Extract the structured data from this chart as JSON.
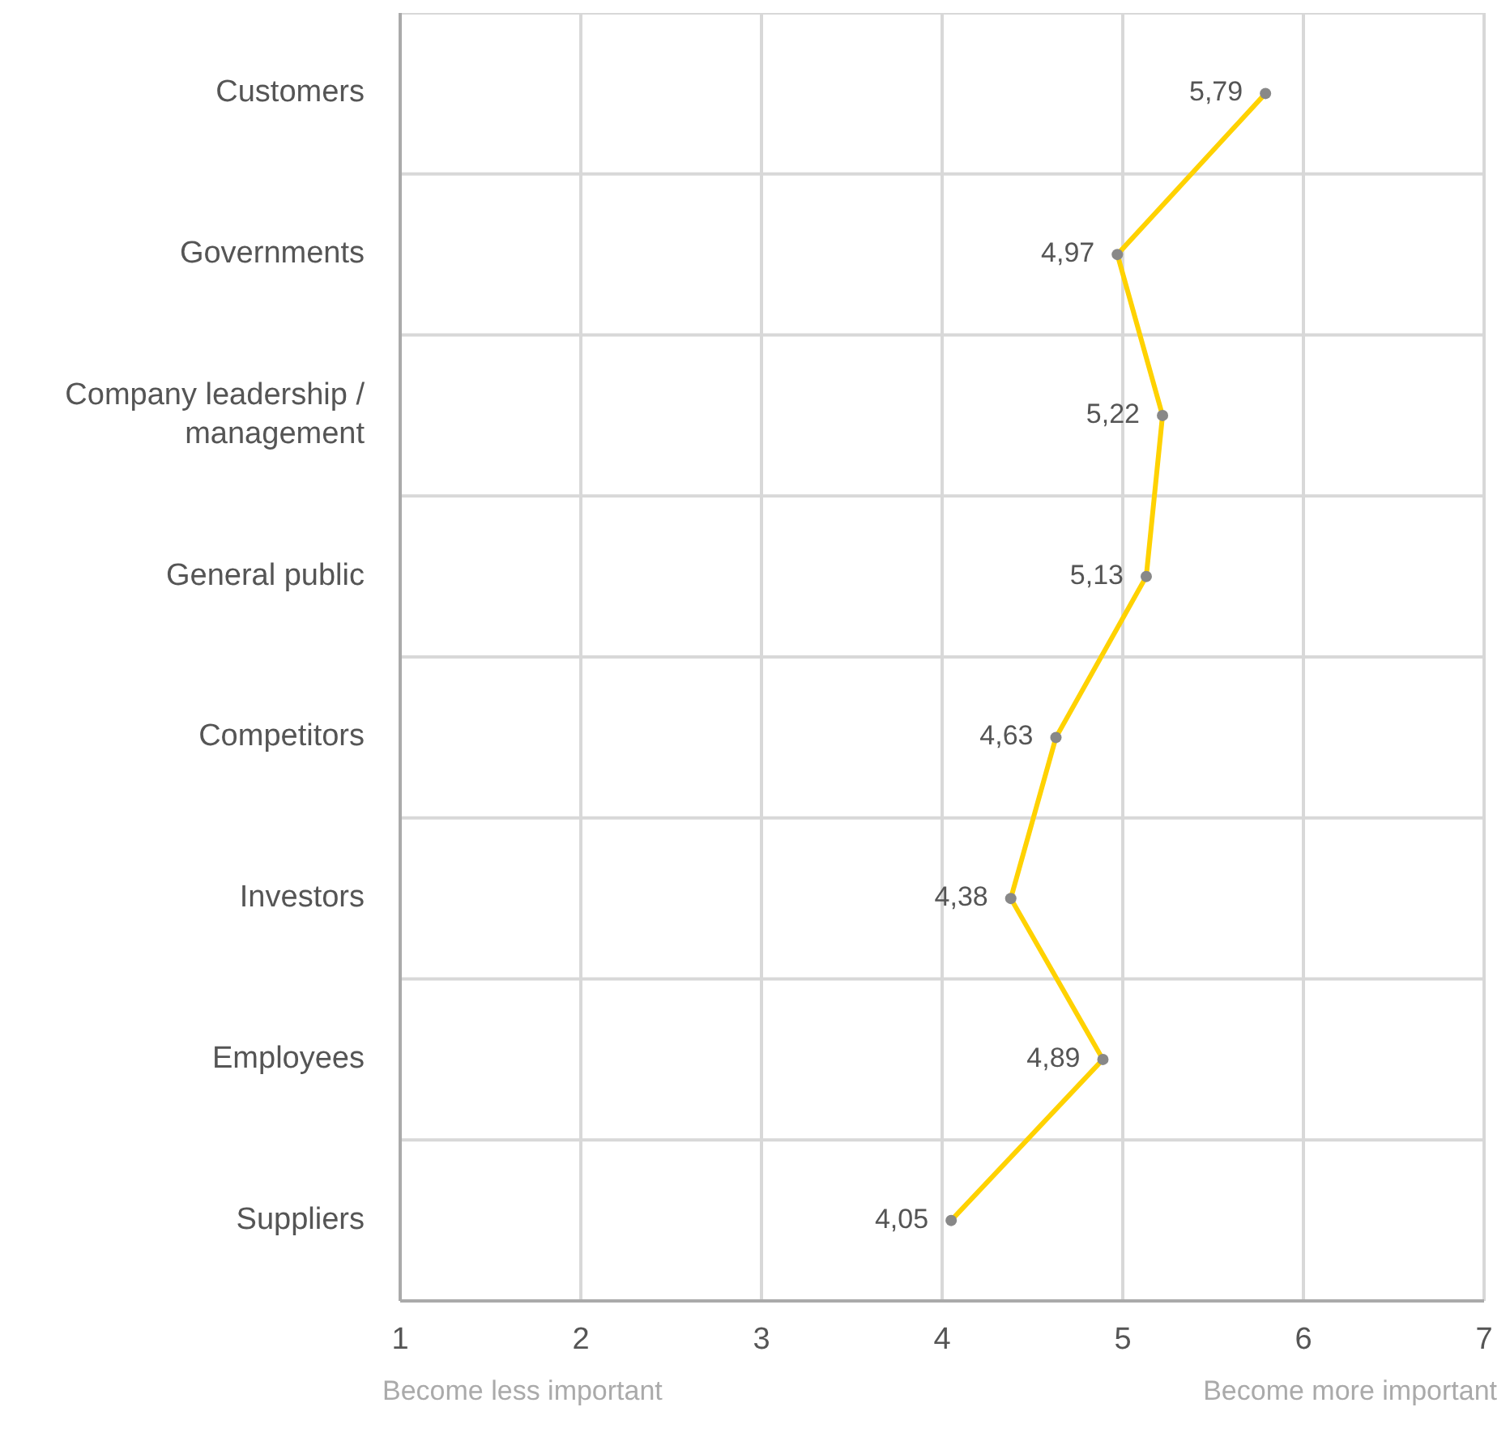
{
  "chart_data": {
    "type": "line",
    "orientation": "horizontal",
    "categories": [
      "Customers",
      "Governments",
      "Company leadership / management",
      "General public",
      "Competitors",
      "Investors",
      "Employees",
      "Suppliers"
    ],
    "values": [
      5.79,
      4.97,
      5.22,
      5.13,
      4.63,
      4.38,
      4.89,
      4.05
    ],
    "value_labels": [
      "5,79",
      "4,97",
      "5,22",
      "5,13",
      "4,63",
      "4,38",
      "4,89",
      "4,05"
    ],
    "color": "#ffd200",
    "marker": "circle",
    "xlim": [
      1,
      7
    ],
    "xticks": [
      1,
      2,
      3,
      4,
      5,
      6,
      7
    ],
    "grid": true,
    "annotations": [
      "Become less important",
      "Become more important"
    ]
  }
}
